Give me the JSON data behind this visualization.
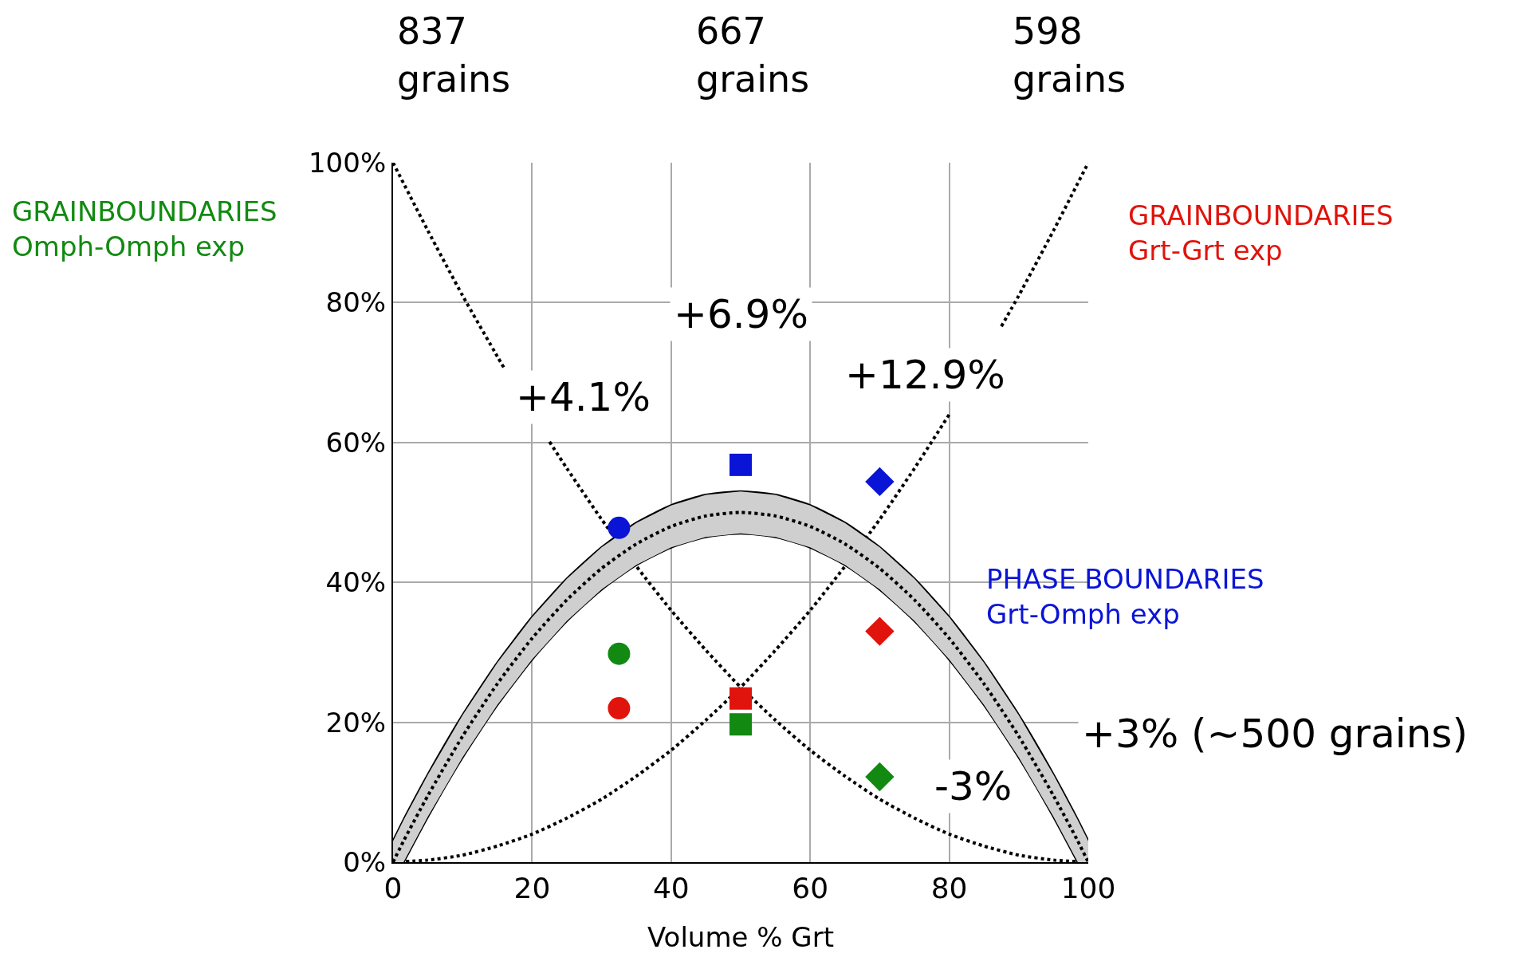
{
  "chart_data": {
    "type": "scatter",
    "xlabel": "Volume % Grt",
    "xlim": [
      0,
      100
    ],
    "xticks": [
      0,
      20,
      40,
      60,
      80,
      100
    ],
    "ylim": [
      0,
      100
    ],
    "yticks": [
      {
        "value": 0,
        "label": "0%"
      },
      {
        "value": 20,
        "label": "20%"
      },
      {
        "value": 40,
        "label": "40%"
      },
      {
        "value": 60,
        "label": "60%"
      },
      {
        "value": 80,
        "label": "80%"
      },
      {
        "value": 100,
        "label": "100%"
      }
    ],
    "grid": true,
    "legend": false,
    "annotations": [
      "837\ngrains",
      "667\ngrains",
      "598\ngrains",
      "+4.1%",
      "+6.9%",
      "+12.9%",
      "-3%",
      "+3% (~500 grains)"
    ],
    "series": [
      {
        "type": "line",
        "color": "#000000",
        "line_style": "dotted",
        "marker": "none",
        "x": [
          0,
          5,
          10,
          15,
          16,
          20,
          22.5,
          25,
          30,
          35,
          40,
          45,
          50,
          55,
          60,
          65,
          70,
          75,
          80,
          85,
          90,
          95,
          100
        ],
        "values": [
          100,
          90.3,
          81,
          72.3,
          70.6,
          null,
          60.1,
          56.3,
          49,
          42.3,
          36,
          30.3,
          25,
          20.3,
          16,
          12.3,
          9,
          6.3,
          4,
          2.3,
          1,
          0.3,
          0
        ]
      },
      {
        "type": "line",
        "color": "#000000",
        "line_style": "dotted",
        "marker": "none",
        "x": [
          0,
          5,
          10,
          15,
          20,
          25,
          30,
          35,
          40,
          45,
          50,
          55,
          60,
          65,
          70,
          75,
          80,
          85,
          87.5,
          90,
          95,
          100
        ],
        "values": [
          0,
          0.3,
          1,
          2.3,
          4,
          6.3,
          9,
          12.3,
          16,
          20.3,
          25,
          30.3,
          36,
          42.3,
          49,
          56.3,
          64,
          null,
          76.6,
          81,
          90.3,
          100
        ]
      },
      {
        "type": "line",
        "color": "#000000",
        "line_style": "solid",
        "marker": "none",
        "x": [
          0,
          1.5,
          5,
          10,
          15,
          20,
          25,
          30,
          35,
          40,
          45,
          50,
          55,
          60,
          65,
          70,
          75,
          80,
          85,
          90,
          95,
          98.5,
          100
        ],
        "values": [
          3,
          6.0,
          12.5,
          21,
          28.5,
          35,
          40.5,
          45,
          48.5,
          51,
          52.5,
          53,
          52.5,
          51,
          48.5,
          45,
          40.5,
          35,
          28.5,
          21,
          12.5,
          6.0,
          3
        ]
      },
      {
        "type": "line",
        "color": "#000000",
        "line_style": "solid",
        "marker": "none",
        "x": [
          1.5,
          5,
          10,
          15,
          20,
          25,
          30,
          35,
          40,
          45,
          50,
          55,
          60,
          65,
          70,
          75,
          80,
          85,
          90,
          95,
          98.5
        ],
        "values": [
          0,
          6.5,
          15,
          22.5,
          29,
          34.5,
          39,
          42.5,
          45,
          46.5,
          47,
          46.5,
          45,
          42.5,
          39,
          34.5,
          29,
          22.5,
          15,
          6.5,
          0
        ]
      },
      {
        "type": "line",
        "color": "#000000",
        "line_style": "dotted",
        "marker": "none",
        "x": [
          0,
          1.5,
          5,
          10,
          15,
          20,
          25,
          30,
          35,
          40,
          45,
          50,
          55,
          60,
          65,
          70,
          75,
          80,
          85,
          90,
          95,
          98.5,
          100
        ],
        "values": [
          0,
          3.0,
          9.5,
          18,
          25.5,
          32,
          37.5,
          42,
          45.5,
          48,
          49.5,
          50,
          49.5,
          48,
          45.5,
          42,
          37.5,
          32,
          25.5,
          18,
          9.5,
          3.0,
          0
        ],
        "lower": [
          0,
          0,
          6.5,
          15,
          22.5,
          29,
          34.5,
          39,
          42.5,
          45,
          46.5,
          47,
          46.5,
          45,
          42.5,
          39,
          34.5,
          29,
          22.5,
          15,
          6.5,
          0,
          0
        ],
        "upper": [
          3,
          6.0,
          12.5,
          21,
          28.5,
          35,
          40.5,
          45,
          48.5,
          51,
          52.5,
          53,
          52.5,
          51,
          48.5,
          45,
          40.5,
          35,
          28.5,
          21,
          12.5,
          6.0,
          3
        ]
      },
      {
        "name": "GRAINBOUNDARIES\nOmph-Omph exp",
        "color": "#128a12",
        "marker": [
          "circle",
          "square",
          "diamond"
        ],
        "x": [
          32.5,
          50,
          70
        ],
        "values": [
          29.8,
          19.7,
          12.2
        ]
      },
      {
        "name": "GRAINBOUNDARIES\nGrt-Grt exp",
        "color": "#e0140c",
        "marker": [
          "circle",
          "square",
          "diamond"
        ],
        "x": [
          32.5,
          50,
          70
        ],
        "values": [
          22.0,
          23.4,
          33.0
        ]
      },
      {
        "name": "PHASE BOUNDARIES\nGrt-Omph exp",
        "color": "#0a14d6",
        "marker": [
          "circle",
          "square",
          "diamond"
        ],
        "x": [
          32.5,
          50,
          70
        ],
        "values": [
          47.8,
          56.8,
          54.4
        ]
      }
    ]
  }
}
